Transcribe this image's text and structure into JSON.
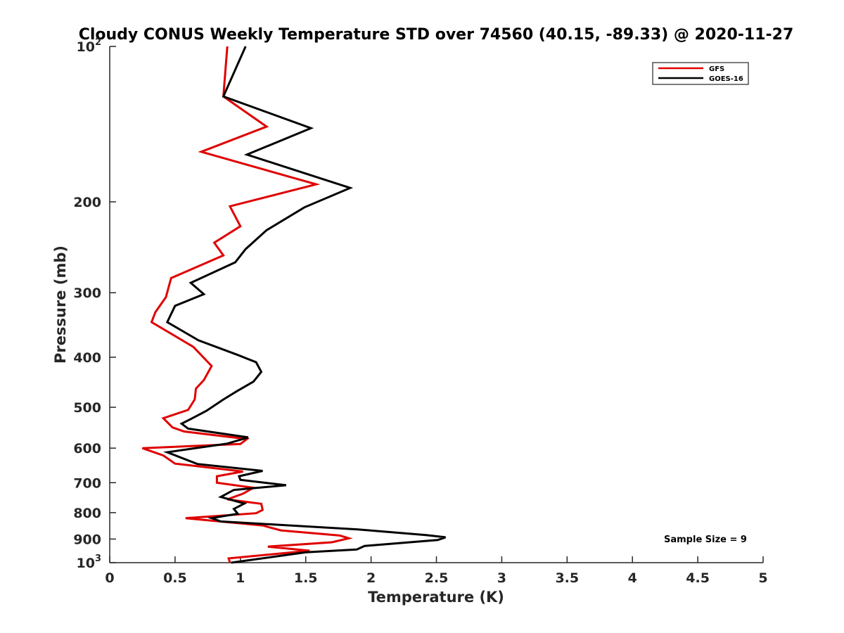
{
  "chart_data": {
    "type": "line",
    "title": "Cloudy CONUS Weekly Temperature STD over 74560 (40.15, -89.33) @ 2020-11-27",
    "xlabel": "Temperature (K)",
    "ylabel": "Pressure (mb)",
    "xlim": [
      0,
      5
    ],
    "ylim": [
      100,
      1000
    ],
    "yscale": "log",
    "yreversed": true,
    "x_ticks": [
      {
        "value": 0,
        "label": "0"
      },
      {
        "value": 0.5,
        "label": "0.5"
      },
      {
        "value": 1,
        "label": "1"
      },
      {
        "value": 1.5,
        "label": "1.5"
      },
      {
        "value": 2,
        "label": "2"
      },
      {
        "value": 2.5,
        "label": "2.5"
      },
      {
        "value": 3,
        "label": "3"
      },
      {
        "value": 3.5,
        "label": "3.5"
      },
      {
        "value": 4,
        "label": "4"
      },
      {
        "value": 4.5,
        "label": "4.5"
      },
      {
        "value": 5,
        "label": "5"
      }
    ],
    "y_ticks": [
      {
        "value": 100,
        "base": "10",
        "exp": "2"
      },
      {
        "value": 200,
        "label": "200"
      },
      {
        "value": 300,
        "label": "300"
      },
      {
        "value": 400,
        "label": "400"
      },
      {
        "value": 500,
        "label": "500"
      },
      {
        "value": 600,
        "label": "600"
      },
      {
        "value": 700,
        "label": "700"
      },
      {
        "value": 800,
        "label": "800"
      },
      {
        "value": 900,
        "label": "900"
      },
      {
        "value": 1000,
        "base": "10",
        "exp": "3"
      }
    ],
    "grid": false,
    "legend_position": "top-right",
    "series": [
      {
        "name": "GFS",
        "color": "#e00000",
        "points": [
          [
            0.9,
            100
          ],
          [
            0.87,
            125
          ],
          [
            1.2,
            143
          ],
          [
            0.7,
            160
          ],
          [
            1.58,
            185
          ],
          [
            0.92,
            204
          ],
          [
            1.0,
            223
          ],
          [
            0.8,
            240
          ],
          [
            0.87,
            254
          ],
          [
            0.47,
            281
          ],
          [
            0.43,
            306
          ],
          [
            0.35,
            327
          ],
          [
            0.32,
            342
          ],
          [
            0.64,
            382
          ],
          [
            0.78,
            416
          ],
          [
            0.72,
            443
          ],
          [
            0.66,
            460
          ],
          [
            0.65,
            483
          ],
          [
            0.6,
            506
          ],
          [
            0.41,
            525
          ],
          [
            0.48,
            547
          ],
          [
            0.57,
            557
          ],
          [
            1.05,
            576
          ],
          [
            1.0,
            589
          ],
          [
            0.25,
            600
          ],
          [
            0.41,
            620
          ],
          [
            0.5,
            643
          ],
          [
            1.02,
            666
          ],
          [
            0.82,
            680
          ],
          [
            0.82,
            700
          ],
          [
            1.1,
            716
          ],
          [
            1.02,
            735
          ],
          [
            0.9,
            754
          ],
          [
            1.16,
            769
          ],
          [
            1.17,
            790
          ],
          [
            1.12,
            802
          ],
          [
            0.58,
            820
          ],
          [
            1.17,
            847
          ],
          [
            1.31,
            866
          ],
          [
            1.76,
            886
          ],
          [
            1.83,
            897
          ],
          [
            1.7,
            913
          ],
          [
            1.21,
            931
          ],
          [
            1.53,
            948
          ],
          [
            0.91,
            981
          ],
          [
            0.92,
            1000
          ]
        ]
      },
      {
        "name": "GOES-16",
        "color": "#000000",
        "points": [
          [
            1.04,
            100
          ],
          [
            0.87,
            125
          ],
          [
            1.54,
            144
          ],
          [
            1.05,
            162
          ],
          [
            1.84,
            188
          ],
          [
            1.49,
            205
          ],
          [
            1.2,
            227
          ],
          [
            1.04,
            247
          ],
          [
            0.96,
            262
          ],
          [
            0.62,
            287
          ],
          [
            0.72,
            302
          ],
          [
            0.5,
            318
          ],
          [
            0.44,
            342
          ],
          [
            0.68,
            371
          ],
          [
            0.98,
            396
          ],
          [
            1.12,
            409
          ],
          [
            1.16,
            427
          ],
          [
            1.1,
            446
          ],
          [
            0.97,
            466
          ],
          [
            0.87,
            483
          ],
          [
            0.74,
            508
          ],
          [
            0.62,
            527
          ],
          [
            0.55,
            538
          ],
          [
            0.6,
            550
          ],
          [
            1.06,
            572
          ],
          [
            0.9,
            588
          ],
          [
            0.44,
            611
          ],
          [
            0.67,
            644
          ],
          [
            1.17,
            664
          ],
          [
            0.99,
            680
          ],
          [
            1.0,
            691
          ],
          [
            1.35,
            708
          ],
          [
            0.95,
            723
          ],
          [
            0.85,
            746
          ],
          [
            1.03,
            768
          ],
          [
            0.95,
            787
          ],
          [
            0.98,
            804
          ],
          [
            0.78,
            820
          ],
          [
            0.85,
            832
          ],
          [
            1.9,
            862
          ],
          [
            2.42,
            884
          ],
          [
            2.57,
            893
          ],
          [
            2.51,
            904
          ],
          [
            1.95,
            928
          ],
          [
            1.89,
            943
          ],
          [
            1.5,
            955
          ],
          [
            0.93,
            1000
          ]
        ]
      }
    ],
    "annotations": [
      {
        "text": "Sample Size = 9",
        "x": 4.3,
        "y": 900
      }
    ]
  }
}
